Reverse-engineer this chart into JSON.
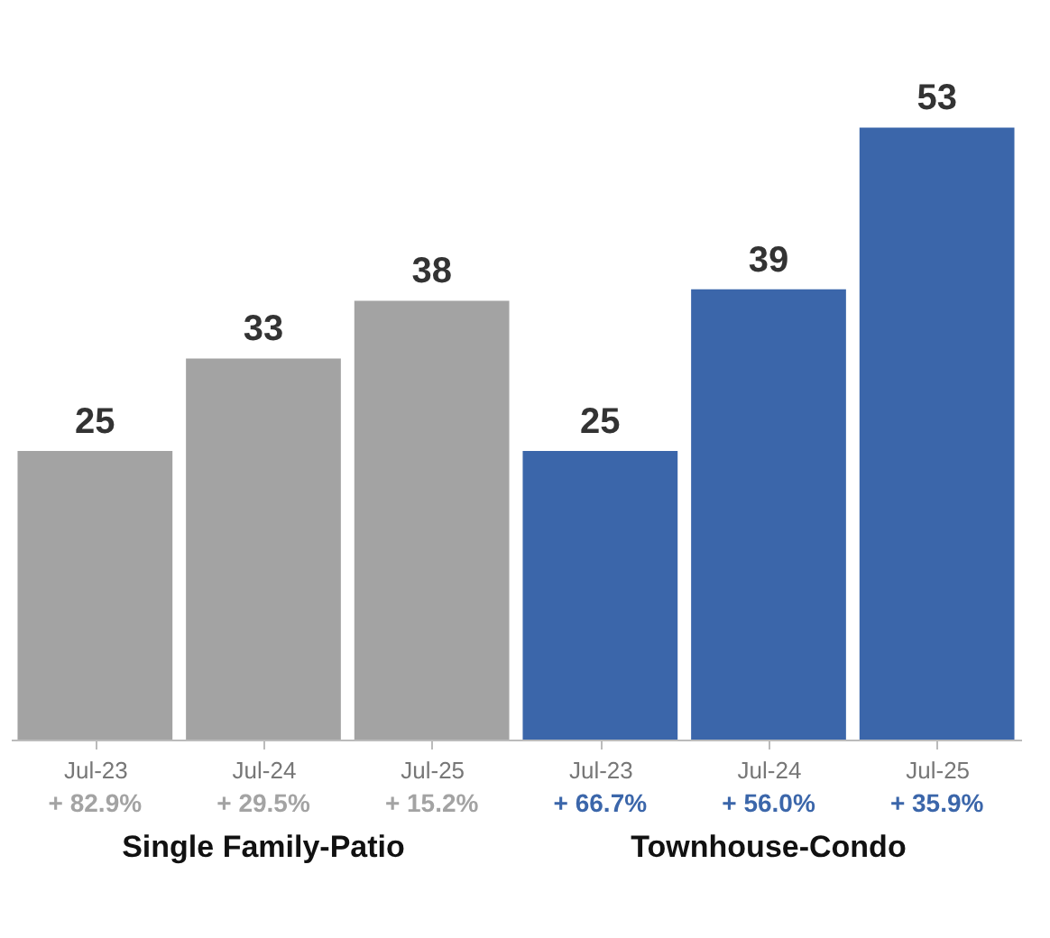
{
  "chart_data": {
    "type": "bar",
    "categories": [
      "Jul-23",
      "Jul-24",
      "Jul-25",
      "Jul-23",
      "Jul-24",
      "Jul-25"
    ],
    "series": [
      {
        "name": "Single Family-Patio",
        "color": "#a3a3a3",
        "values": [
          25,
          33,
          38,
          null,
          null,
          null
        ]
      },
      {
        "name": "Townhouse-Condo",
        "color": "#3b66aa",
        "values": [
          null,
          null,
          null,
          25,
          39,
          53
        ]
      }
    ],
    "annotations": [
      "+ 82.9%",
      "+ 29.5%",
      "+ 15.2%",
      "+ 66.7%",
      "+ 56.0%",
      "+ 35.9%"
    ],
    "data_labels": true
  }
}
